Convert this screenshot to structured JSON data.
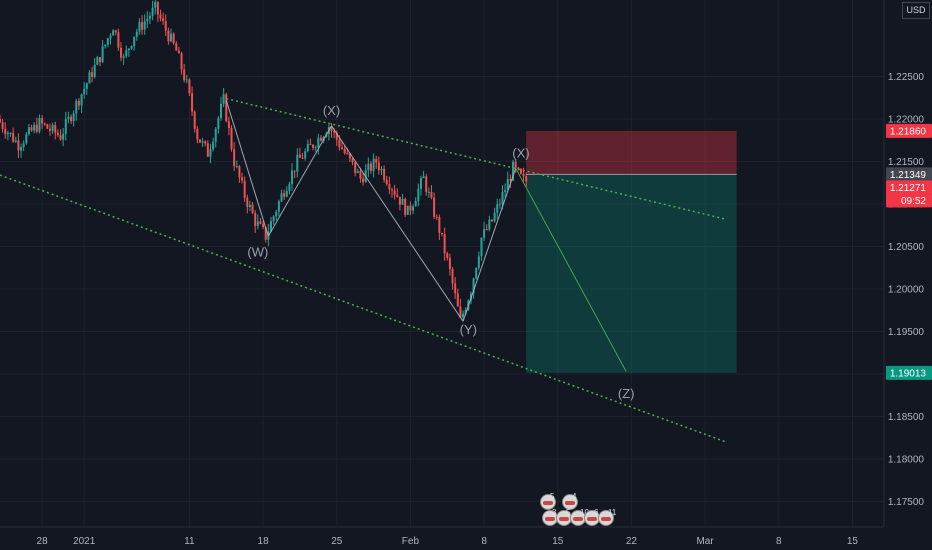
{
  "currency": "USD",
  "chart_data": {
    "type": "candlestick",
    "y_axis": {
      "ticks": [
        "1.22500",
        "1.22000",
        "1.21500",
        "1.21000",
        "1.20500",
        "1.20000",
        "1.19500",
        "1.19000",
        "1.18500",
        "1.18000",
        "1.17500"
      ],
      "tick_values": [
        1.225,
        1.22,
        1.215,
        1.21,
        1.205,
        1.2,
        1.195,
        1.19,
        1.185,
        1.18,
        1.175
      ],
      "range": [
        1.172,
        1.234
      ]
    },
    "x_axis": {
      "ticks": [
        "28",
        "2021",
        "11",
        "18",
        "25",
        "Feb",
        "8",
        "15",
        "22",
        "Mar",
        "8",
        "15"
      ],
      "tick_days": [
        0,
        4,
        14,
        21,
        28,
        35,
        42,
        49,
        56,
        63,
        70,
        77
      ],
      "range_days": [
        -4,
        80
      ]
    },
    "price_labels": [
      {
        "text": "1.21860",
        "value": 1.2186,
        "color": "#f23645"
      },
      {
        "text": "1.21349",
        "value": 1.21349,
        "color": "#434651"
      },
      {
        "text": "1.21271",
        "value": 1.21271,
        "color": "#f23645"
      },
      {
        "text": "09:52",
        "value": 1.212,
        "color": "#f23645"
      },
      {
        "text": "1.19013",
        "value": 1.19013,
        "color": "#089981"
      }
    ],
    "position": {
      "entry": 1.21349,
      "stop": 1.2186,
      "target": 1.19013,
      "start_day": 46,
      "end_day": 66
    },
    "wave_labels": [
      {
        "text": "(X)",
        "day": 27.5,
        "value": 1.2205
      },
      {
        "text": "(W)",
        "day": 20.5,
        "value": 1.2038
      },
      {
        "text": "(Y)",
        "day": 40.5,
        "value": 1.1947
      },
      {
        "text": "(X)",
        "day": 45.5,
        "value": 1.2155
      },
      {
        "text": "(Z)",
        "day": 55.5,
        "value": 1.1872
      }
    ],
    "wave_path": [
      {
        "day": 17.5,
        "value": 1.2222
      },
      {
        "day": 21.5,
        "value": 1.2062
      },
      {
        "day": 27.5,
        "value": 1.2192
      },
      {
        "day": 40,
        "value": 1.1962
      },
      {
        "day": 45,
        "value": 1.2142
      },
      {
        "day": 55.5,
        "value": 1.1903
      }
    ],
    "channel_upper": [
      {
        "day": 17.5,
        "value": 1.2224
      },
      {
        "day": 65,
        "value": 1.2082
      }
    ],
    "channel_lower": [
      {
        "day": -4,
        "value": 1.2134
      },
      {
        "day": 65,
        "value": 1.182
      }
    ],
    "price_anchors": [
      {
        "day": -4,
        "value": 1.22
      },
      {
        "day": -2,
        "value": 1.217
      },
      {
        "day": 0,
        "value": 1.2195
      },
      {
        "day": 2,
        "value": 1.218
      },
      {
        "day": 4,
        "value": 1.223
      },
      {
        "day": 6,
        "value": 1.228
      },
      {
        "day": 7,
        "value": 1.231
      },
      {
        "day": 8,
        "value": 1.227
      },
      {
        "day": 9,
        "value": 1.23
      },
      {
        "day": 11,
        "value": 1.233
      },
      {
        "day": 13,
        "value": 1.228
      },
      {
        "day": 14,
        "value": 1.224
      },
      {
        "day": 15,
        "value": 1.218
      },
      {
        "day": 16,
        "value": 1.216
      },
      {
        "day": 17.5,
        "value": 1.2222
      },
      {
        "day": 18.5,
        "value": 1.215
      },
      {
        "day": 19.5,
        "value": 1.211
      },
      {
        "day": 20.5,
        "value": 1.208
      },
      {
        "day": 21.5,
        "value": 1.2062
      },
      {
        "day": 23,
        "value": 1.211
      },
      {
        "day": 24.5,
        "value": 1.215
      },
      {
        "day": 26,
        "value": 1.217
      },
      {
        "day": 27.5,
        "value": 1.2192
      },
      {
        "day": 29,
        "value": 1.216
      },
      {
        "day": 30.5,
        "value": 1.213
      },
      {
        "day": 32,
        "value": 1.215
      },
      {
        "day": 33.5,
        "value": 1.212
      },
      {
        "day": 35,
        "value": 1.209
      },
      {
        "day": 36.5,
        "value": 1.213
      },
      {
        "day": 38,
        "value": 1.207
      },
      {
        "day": 39,
        "value": 1.202
      },
      {
        "day": 40,
        "value": 1.1962
      },
      {
        "day": 41,
        "value": 1.2
      },
      {
        "day": 42,
        "value": 1.206
      },
      {
        "day": 43,
        "value": 1.208
      },
      {
        "day": 44,
        "value": 1.211
      },
      {
        "day": 45,
        "value": 1.2142
      },
      {
        "day": 46,
        "value": 1.2127
      }
    ],
    "grid": true
  },
  "community_icons": [
    {
      "count": "5"
    },
    {
      "count": "4"
    },
    {
      "count": "3"
    },
    {
      "count": "5"
    },
    {
      "count": "10"
    },
    {
      "count": "6"
    },
    {
      "count": "11"
    }
  ]
}
